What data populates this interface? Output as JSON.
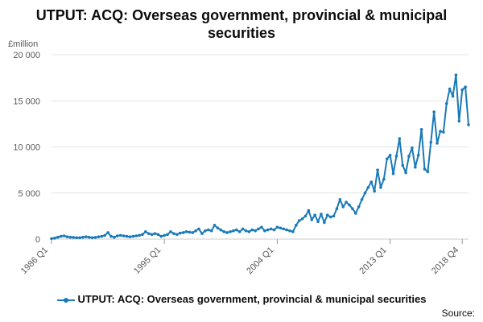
{
  "chart_data": {
    "type": "line",
    "title_line1": "UTPUT: ACQ: Overseas government, provincial & municipal",
    "title_line2": "securities",
    "ylabel": "£million",
    "ylim": [
      0,
      20000
    ],
    "y_ticks": [
      0,
      5000,
      10000,
      15000,
      20000
    ],
    "y_tick_labels": [
      "0",
      "5 000",
      "10 000",
      "15 000",
      "20 000"
    ],
    "x_tick_labels": [
      "1986 Q1",
      "1995 Q1",
      "2004 Q1",
      "2013 Q1",
      "2018 Q4"
    ],
    "x_tick_indices": [
      0,
      36,
      72,
      108,
      131
    ],
    "grid": true,
    "legend_position": "bottom",
    "series": [
      {
        "name": "UTPUT: ACQ: Overseas government, provincial & municipal securities",
        "color": "#1a7ab8",
        "start": "1986 Q1",
        "values": [
          50,
          100,
          200,
          300,
          350,
          250,
          200,
          180,
          150,
          150,
          200,
          250,
          200,
          150,
          180,
          250,
          300,
          400,
          700,
          300,
          200,
          350,
          400,
          350,
          300,
          250,
          300,
          350,
          400,
          500,
          800,
          600,
          500,
          600,
          500,
          300,
          400,
          500,
          800,
          600,
          500,
          650,
          700,
          800,
          750,
          700,
          900,
          1100,
          600,
          900,
          1000,
          900,
          1500,
          1200,
          1000,
          800,
          700,
          800,
          900,
          1000,
          800,
          1100,
          900,
          800,
          1000,
          900,
          1100,
          1300,
          900,
          1000,
          1100,
          1000,
          1300,
          1200,
          1100,
          1000,
          900,
          800,
          1500,
          2000,
          2200,
          2500,
          3100,
          2100,
          2600,
          1900,
          2700,
          1800,
          2600,
          2400,
          2500,
          3300,
          4300,
          3500,
          4000,
          3700,
          3300,
          2800,
          3500,
          4300,
          5000,
          5600,
          6200,
          5200,
          7500,
          5600,
          6500,
          8700,
          9100,
          7100,
          9000,
          10900,
          8000,
          7200,
          9000,
          9900,
          7800,
          9100,
          11900,
          7600,
          7300,
          10500,
          13800,
          10400,
          11700,
          11600,
          14700,
          16300,
          15500,
          17800,
          12800,
          16200,
          16500,
          12400
        ]
      }
    ]
  },
  "legend": {
    "label": "UTPUT: ACQ: Overseas government, provincial & municipal securities"
  },
  "footer": {
    "source": "Source:"
  }
}
